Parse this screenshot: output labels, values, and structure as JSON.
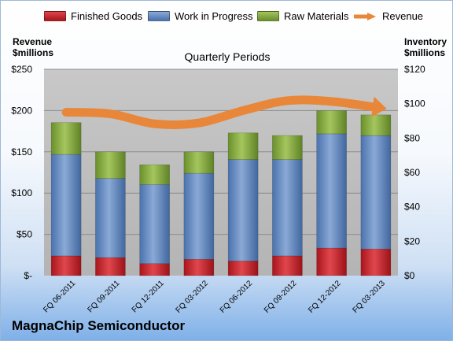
{
  "company_label": "MagnaChip Semiconductor",
  "chart_data": {
    "type": "bar",
    "stacked": true,
    "title": "Quarterly Periods",
    "left_axis_label": [
      "Revenue",
      "$millions"
    ],
    "right_axis_label": [
      "Inventory",
      "$millions"
    ],
    "categories": [
      "FQ 06-2011",
      "FQ 09-2011",
      "FQ 12-2011",
      "FQ 03-2012",
      "FQ 06-2012",
      "FQ 09-2012",
      "FQ 12-2012",
      "FQ 03-2013"
    ],
    "series": [
      {
        "name": "Finished Goods",
        "axis": "right",
        "color": "#c0262d",
        "values": [
          11.5,
          10.5,
          7.0,
          9.5,
          8.5,
          11.5,
          16.0,
          15.5
        ]
      },
      {
        "name": "Work in Progress",
        "axis": "right",
        "color": "#5b83bd",
        "values": [
          59.0,
          46.0,
          46.0,
          50.0,
          59.0,
          56.0,
          66.5,
          66.0
        ]
      },
      {
        "name": "Raw Materials",
        "axis": "right",
        "color": "#7fa33e",
        "values": [
          18.5,
          15.5,
          11.5,
          12.5,
          15.5,
          14.0,
          13.5,
          12.0
        ]
      },
      {
        "name": "Revenue",
        "axis": "left",
        "type": "line",
        "color": "#e8873a",
        "values": [
          198,
          196,
          184,
          185,
          200,
          212,
          211,
          204
        ]
      }
    ],
    "left_axis": {
      "min": 0,
      "max": 250,
      "ticks": [
        "$-",
        "$50",
        "$100",
        "$150",
        "$200",
        "$250"
      ]
    },
    "right_axis": {
      "min": 0,
      "max": 120,
      "ticks": [
        "$0",
        "$20",
        "$40",
        "$60",
        "$80",
        "$100",
        "$120"
      ]
    },
    "grid": true,
    "legend_position": "top"
  }
}
